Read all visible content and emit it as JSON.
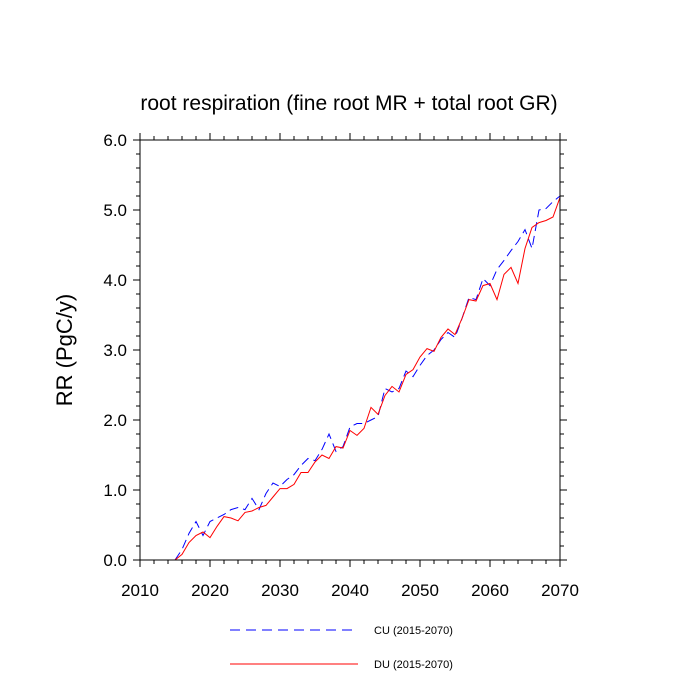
{
  "chart_data": {
    "type": "line",
    "title": "root respiration (fine root MR + total root GR)",
    "xlabel": "",
    "ylabel": "RR  (PgC/y)",
    "xlim": [
      2010,
      2070
    ],
    "ylim": [
      0.0,
      6.0
    ],
    "x_ticks": [
      2010,
      2020,
      2030,
      2040,
      2050,
      2060,
      2070
    ],
    "y_ticks": [
      "0.0",
      "1.0",
      "2.0",
      "3.0",
      "4.0",
      "5.0",
      "6.0"
    ],
    "grid": false,
    "legend_position": "bottom-center",
    "x": [
      2015,
      2016,
      2017,
      2018,
      2019,
      2020,
      2021,
      2022,
      2023,
      2024,
      2025,
      2026,
      2027,
      2028,
      2029,
      2030,
      2031,
      2032,
      2033,
      2034,
      2035,
      2036,
      2037,
      2038,
      2039,
      2040,
      2041,
      2042,
      2043,
      2044,
      2045,
      2046,
      2047,
      2048,
      2049,
      2050,
      2051,
      2052,
      2053,
      2054,
      2055,
      2056,
      2057,
      2058,
      2059,
      2060,
      2061,
      2062,
      2063,
      2064,
      2065,
      2066,
      2067,
      2068,
      2069,
      2070
    ],
    "series": [
      {
        "name": "CU (2015-2070)",
        "color": "#0000ff",
        "style": "dashed",
        "values": [
          0.0,
          0.15,
          0.38,
          0.55,
          0.35,
          0.55,
          0.6,
          0.65,
          0.72,
          0.75,
          0.72,
          0.88,
          0.72,
          0.95,
          1.1,
          1.05,
          1.15,
          1.22,
          1.35,
          1.45,
          1.42,
          1.58,
          1.8,
          1.55,
          1.62,
          1.9,
          1.95,
          1.95,
          2.0,
          2.05,
          2.45,
          2.4,
          2.45,
          2.7,
          2.62,
          2.78,
          2.92,
          3.0,
          3.15,
          3.25,
          3.18,
          3.45,
          3.75,
          3.72,
          4.02,
          3.92,
          4.15,
          4.28,
          4.42,
          4.55,
          4.72,
          4.45,
          5.0,
          5.02,
          5.12,
          5.2
        ]
      },
      {
        "name": "DU (2015-2070)",
        "color": "#ff0000",
        "style": "solid",
        "values": [
          0.0,
          0.08,
          0.25,
          0.35,
          0.4,
          0.32,
          0.48,
          0.62,
          0.6,
          0.56,
          0.68,
          0.7,
          0.75,
          0.78,
          0.9,
          1.02,
          1.02,
          1.08,
          1.25,
          1.25,
          1.4,
          1.5,
          1.45,
          1.62,
          1.6,
          1.85,
          1.78,
          1.88,
          2.18,
          2.08,
          2.35,
          2.48,
          2.4,
          2.65,
          2.72,
          2.9,
          3.02,
          2.98,
          3.18,
          3.3,
          3.22,
          3.45,
          3.72,
          3.7,
          3.92,
          3.95,
          3.72,
          4.08,
          4.18,
          3.95,
          4.45,
          4.75,
          4.82,
          4.85,
          4.9,
          5.18
        ]
      }
    ]
  }
}
